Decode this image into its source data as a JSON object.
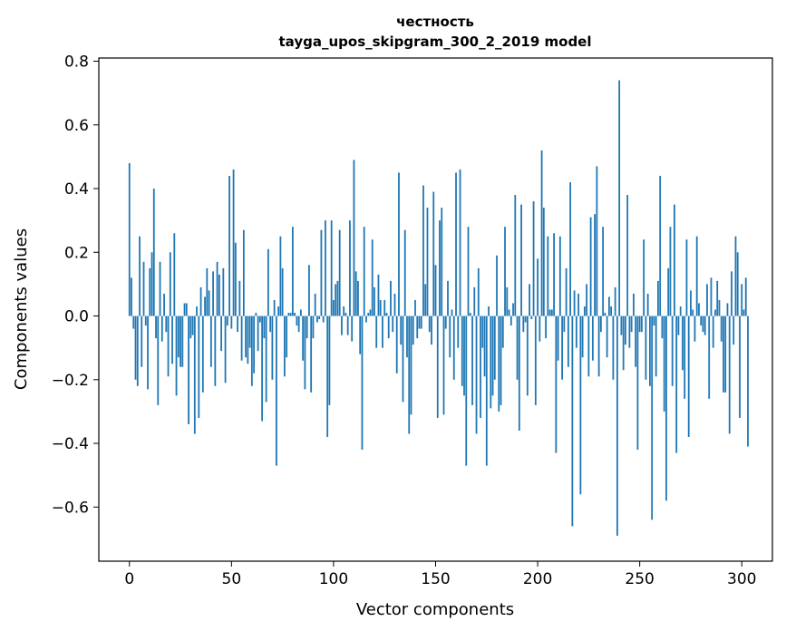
{
  "chart_data": {
    "type": "bar",
    "title": "честность",
    "subtitle": "tayga_upos_skipgram_300_2_2019 model",
    "xlabel": "Vector components",
    "ylabel": "Components values",
    "xlim": [
      -15,
      315
    ],
    "ylim": [
      -0.77,
      0.81
    ],
    "xticks": [
      0,
      50,
      100,
      150,
      200,
      250,
      300
    ],
    "xtick_labels": [
      "0",
      "50",
      "100",
      "150",
      "200",
      "250",
      "300"
    ],
    "yticks": [
      -0.6,
      -0.4,
      -0.2,
      0.0,
      0.2,
      0.4,
      0.6,
      0.8
    ],
    "ytick_labels": [
      "−0.6",
      "−0.4",
      "−0.2",
      "0.0",
      "0.2",
      "0.4",
      "0.6",
      "0.8"
    ],
    "grid": false,
    "bar_color": "#1f77b4",
    "values": [
      0.48,
      0.12,
      -0.04,
      -0.2,
      -0.22,
      0.25,
      -0.16,
      0.17,
      -0.03,
      -0.23,
      0.15,
      0.2,
      0.4,
      -0.07,
      -0.28,
      0.17,
      -0.08,
      0.07,
      -0.05,
      -0.19,
      0.2,
      -0.15,
      0.26,
      -0.25,
      -0.13,
      -0.16,
      -0.16,
      0.04,
      0.04,
      -0.34,
      -0.07,
      -0.06,
      -0.37,
      0.03,
      -0.32,
      0.09,
      -0.24,
      0.06,
      0.15,
      0.08,
      -0.16,
      0.14,
      -0.22,
      0.17,
      0.13,
      -0.11,
      0.15,
      -0.21,
      -0.03,
      0.44,
      -0.04,
      0.46,
      0.23,
      -0.05,
      0.11,
      -0.14,
      0.27,
      -0.13,
      -0.15,
      -0.1,
      -0.22,
      -0.18,
      0.01,
      -0.11,
      -0.02,
      -0.33,
      -0.07,
      -0.27,
      0.21,
      -0.05,
      -0.2,
      0.05,
      -0.47,
      0.03,
      0.25,
      0.15,
      -0.19,
      -0.13,
      0.01,
      0.01,
      0.28,
      0.01,
      -0.03,
      -0.05,
      0.02,
      -0.14,
      -0.23,
      -0.07,
      0.16,
      -0.24,
      -0.07,
      0.07,
      -0.02,
      -0.01,
      0.27,
      -0.02,
      0.3,
      -0.38,
      -0.28,
      0.3,
      0.05,
      0.1,
      0.11,
      0.27,
      -0.06,
      0.03,
      0.01,
      -0.06,
      0.3,
      -0.08,
      0.49,
      0.14,
      0.11,
      -0.12,
      -0.42,
      0.28,
      -0.02,
      0.01,
      0.02,
      0.24,
      0.09,
      -0.1,
      0.13,
      0.05,
      -0.1,
      0.05,
      0.01,
      -0.07,
      0.11,
      -0.05,
      0.07,
      -0.18,
      0.45,
      -0.09,
      -0.27,
      0.27,
      -0.13,
      -0.37,
      -0.31,
      -0.09,
      0.05,
      -0.07,
      -0.04,
      -0.04,
      0.41,
      0.1,
      0.34,
      -0.05,
      -0.09,
      0.39,
      0.16,
      -0.32,
      0.3,
      0.34,
      -0.31,
      -0.04,
      0.11,
      -0.13,
      0.02,
      -0.2,
      0.45,
      -0.1,
      0.46,
      -0.22,
      -0.25,
      -0.47,
      0.28,
      0.01,
      -0.28,
      0.09,
      -0.37,
      0.15,
      -0.32,
      -0.1,
      -0.19,
      -0.47,
      0.03,
      -0.29,
      -0.25,
      -0.2,
      0.19,
      -0.3,
      -0.28,
      -0.1,
      0.28,
      0.09,
      0.02,
      -0.03,
      0.04,
      0.38,
      -0.2,
      -0.36,
      0.35,
      -0.05,
      -0.02,
      -0.25,
      0.1,
      -0.01,
      0.36,
      -0.28,
      0.18,
      -0.08,
      0.52,
      0.34,
      -0.07,
      0.25,
      0.02,
      0.02,
      0.26,
      -0.43,
      -0.14,
      0.25,
      -0.2,
      -0.05,
      0.15,
      -0.16,
      0.42,
      -0.66,
      0.08,
      -0.1,
      0.07,
      -0.56,
      -0.13,
      0.03,
      0.1,
      -0.19,
      0.31,
      -0.14,
      0.32,
      0.47,
      -0.19,
      -0.05,
      0.28,
      0.01,
      -0.13,
      0.06,
      0.03,
      -0.2,
      0.09,
      -0.69,
      0.74,
      -0.06,
      -0.17,
      -0.09,
      0.38,
      -0.1,
      -0.05,
      0.07,
      -0.16,
      -0.42,
      -0.05,
      -0.05,
      0.24,
      -0.2,
      0.07,
      -0.22,
      -0.64,
      -0.03,
      -0.19,
      0.11,
      0.44,
      -0.07,
      -0.3,
      -0.58,
      0.15,
      0.28,
      -0.22,
      0.35,
      -0.43,
      -0.06,
      0.03,
      -0.17,
      -0.26,
      0.24,
      -0.38,
      0.08,
      0.02,
      -0.08,
      0.25,
      0.04,
      -0.03,
      -0.05,
      -0.06,
      0.1,
      -0.26,
      0.12,
      -0.1,
      0.02,
      0.11,
      0.05,
      -0.08,
      -0.24,
      -0.24,
      0.04,
      -0.37,
      0.14,
      -0.09,
      0.25,
      0.2,
      -0.32,
      0.1,
      0.02,
      0.12,
      -0.41
    ]
  }
}
